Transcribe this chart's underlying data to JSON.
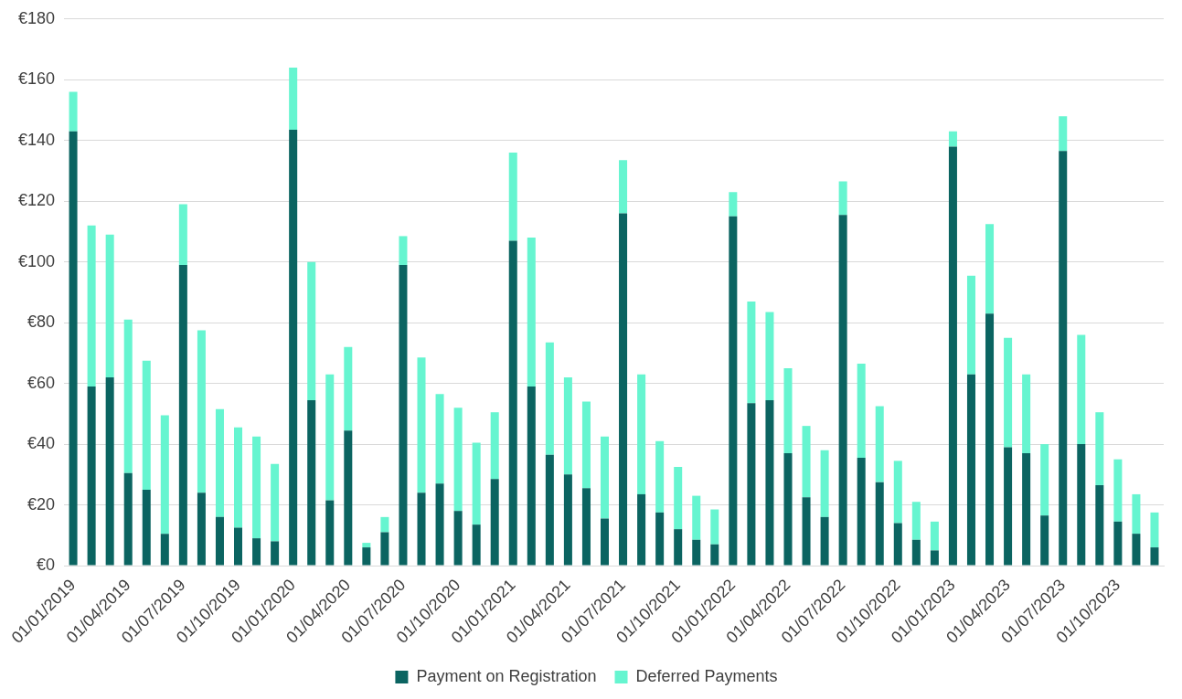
{
  "chart_data": {
    "type": "bar",
    "stacked": true,
    "categories": [
      "01/01/2019",
      null,
      null,
      "01/04/2019",
      null,
      null,
      "01/07/2019",
      null,
      null,
      "01/10/2019",
      null,
      null,
      "01/01/2020",
      null,
      null,
      "01/04/2020",
      null,
      null,
      "01/07/2020",
      null,
      null,
      "01/10/2020",
      null,
      null,
      "01/01/2021",
      null,
      null,
      "01/04/2021",
      null,
      null,
      "01/07/2021",
      null,
      null,
      "01/10/2021",
      null,
      null,
      "01/01/2022",
      null,
      null,
      "01/04/2022",
      null,
      null,
      "01/07/2022",
      null,
      null,
      "01/10/2022",
      null,
      null,
      "01/01/2023",
      null,
      null,
      "01/04/2023",
      null,
      null,
      "01/07/2023",
      null,
      null,
      "01/10/2023",
      null,
      null
    ],
    "series": [
      {
        "name": "Payment on Registration",
        "color": "#0b6461",
        "values": [
          143,
          59,
          62,
          30.5,
          25,
          10.5,
          99,
          24,
          16,
          12.5,
          9,
          8,
          143.5,
          54.5,
          21.5,
          44.5,
          6,
          11,
          99,
          24,
          27,
          18,
          13.5,
          28.5,
          107,
          59,
          36.5,
          30,
          25.5,
          15.5,
          116,
          23.5,
          17.5,
          12,
          8.5,
          7,
          115,
          53.5,
          54.5,
          37,
          22.5,
          16,
          115.5,
          35.5,
          27.5,
          14,
          8.5,
          5,
          138,
          63,
          83,
          39,
          37,
          16.5,
          136.5,
          40,
          26.5,
          14.5,
          10.5,
          6
        ]
      },
      {
        "name": "Deferred Payments",
        "color": "#66f5d0",
        "values": [
          13,
          53,
          47,
          50.5,
          42.5,
          39,
          20,
          53.5,
          35.5,
          33,
          33.5,
          25.5,
          20.5,
          45.5,
          41.5,
          27.5,
          1.5,
          5,
          9.5,
          44.5,
          29.5,
          34,
          27,
          22,
          29,
          49,
          37,
          32,
          28.5,
          27,
          17.5,
          39.5,
          23.5,
          20.5,
          14.5,
          11.5,
          8,
          33.5,
          29,
          28,
          23.5,
          22,
          11,
          31,
          25,
          20.5,
          12.5,
          9.5,
          5,
          32.5,
          29.5,
          36,
          26,
          23.5,
          11.5,
          36,
          24,
          20.5,
          13,
          11.5
        ]
      }
    ],
    "ylim": [
      0,
      180
    ],
    "yticks": [
      {
        "value": 0,
        "label": "€0"
      },
      {
        "value": 20,
        "label": "€20"
      },
      {
        "value": 40,
        "label": "€40"
      },
      {
        "value": 60,
        "label": "€60"
      },
      {
        "value": 80,
        "label": "€80"
      },
      {
        "value": 100,
        "label": "€100"
      },
      {
        "value": 120,
        "label": "€120"
      },
      {
        "value": 140,
        "label": "€140"
      },
      {
        "value": 160,
        "label": "€160"
      },
      {
        "value": 180,
        "label": "€180"
      }
    ],
    "grid": "y",
    "legend": "bottom"
  }
}
